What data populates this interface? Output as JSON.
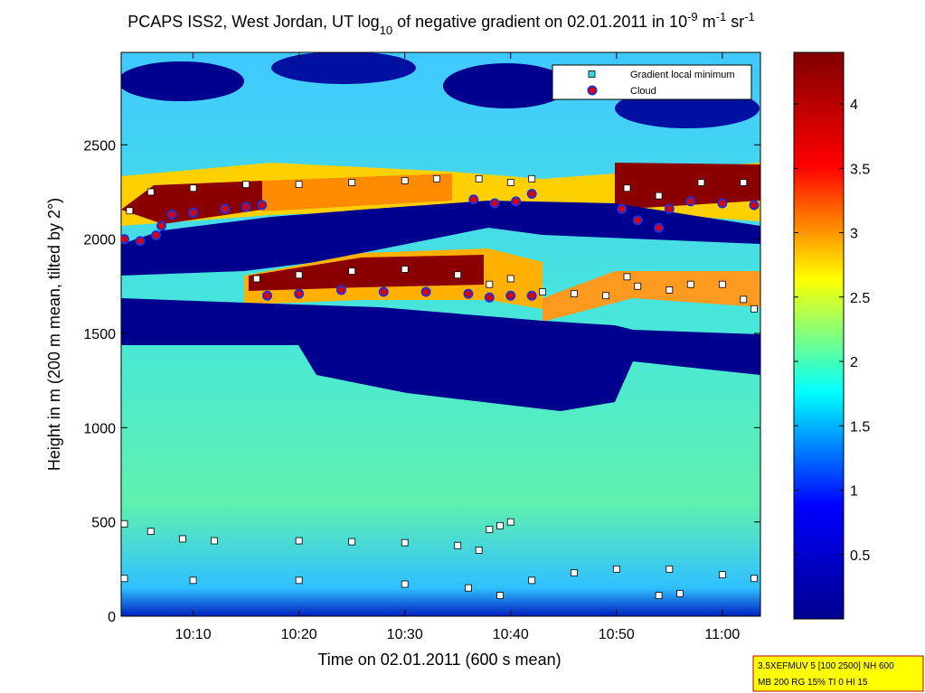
{
  "chart_data": {
    "type": "scatter",
    "title": [
      "PCAPS ISS2, West Jordan, UT log",
      "10",
      " of negative gradient on 02.01.2011 in 10",
      "-9",
      " m",
      "-1",
      " sr",
      "-1"
    ],
    "x_label": "Time on 02.01.2011 (600 s mean)",
    "y_label": "Height in m (200 m mean, tilted by 2°)",
    "xlim": [
      3.2,
      63.6
    ],
    "xticks": [
      {
        "value": 10,
        "label": "10:10"
      },
      {
        "value": 20,
        "label": "10:20"
      },
      {
        "value": 30,
        "label": "10:30"
      },
      {
        "value": 40,
        "label": "10:40"
      },
      {
        "value": 50,
        "label": "10:50"
      },
      {
        "value": 60,
        "label": "11:00"
      }
    ],
    "ylim": [
      0,
      2990
    ],
    "yticks": [
      0,
      500,
      1000,
      1500,
      2000,
      2500
    ],
    "colorbar": {
      "clim": [
        0,
        4.4
      ],
      "ticks": [
        0.5,
        1,
        1.5,
        2,
        2.5,
        3,
        3.5,
        4
      ],
      "colormap": [
        "#00008f",
        "#0000ff",
        "#00ffff",
        "#ffff00",
        "#ff0000",
        "#800000"
      ]
    },
    "legend": "upper right",
    "series": [
      {
        "name": "Gradient local minimum",
        "color": "#30d8e8",
        "point_color": "#ffffff",
        "marker": "square",
        "x": [
          3.5,
          6,
          9,
          12,
          20,
          25,
          30,
          35,
          37,
          38,
          39,
          40,
          3.5,
          10,
          20,
          30,
          36,
          39,
          42,
          46,
          50,
          55,
          60,
          63,
          54,
          56,
          4,
          6,
          10,
          15,
          20,
          25,
          30,
          33,
          37,
          40,
          42,
          51,
          54,
          58,
          62,
          16,
          20,
          25,
          30,
          35,
          38,
          40,
          43,
          46,
          49,
          51,
          52,
          55,
          57,
          60,
          62,
          63
        ],
        "y": [
          490,
          450,
          410,
          400,
          400,
          395,
          390,
          375,
          350,
          460,
          480,
          500,
          200,
          190,
          190,
          170,
          150,
          110,
          190,
          230,
          250,
          250,
          220,
          200,
          110,
          120,
          2150,
          2250,
          2270,
          2290,
          2290,
          2300,
          2310,
          2320,
          2320,
          2300,
          2320,
          2270,
          2230,
          2300,
          2300,
          1790,
          1810,
          1830,
          1840,
          1810,
          1760,
          1790,
          1720,
          1710,
          1700,
          1800,
          1750,
          1730,
          1760,
          1760,
          1680,
          1630
        ]
      },
      {
        "name": "Cloud",
        "color": "#e00000",
        "edge_color": "#2030e0",
        "marker": "circle",
        "x": [
          3.5,
          5,
          6.5,
          7,
          8,
          10,
          13,
          15,
          16.5,
          17,
          20,
          24,
          28,
          32,
          36,
          38,
          40,
          42,
          36.5,
          38.5,
          40.5,
          42,
          50.5,
          52,
          54,
          55,
          57,
          60,
          63
        ],
        "y": [
          2000,
          1990,
          2020,
          2070,
          2130,
          2140,
          2160,
          2170,
          2180,
          1700,
          1710,
          1730,
          1720,
          1720,
          1710,
          1690,
          1700,
          1700,
          2210,
          2190,
          2200,
          2240,
          2160,
          2100,
          2060,
          2160,
          2200,
          2190,
          2180
        ]
      }
    ],
    "info_box": [
      "3.5XEFMUV 5 [100 2500] NH 600",
      "MB 200 RG 15% TI 0 HI 15"
    ]
  }
}
